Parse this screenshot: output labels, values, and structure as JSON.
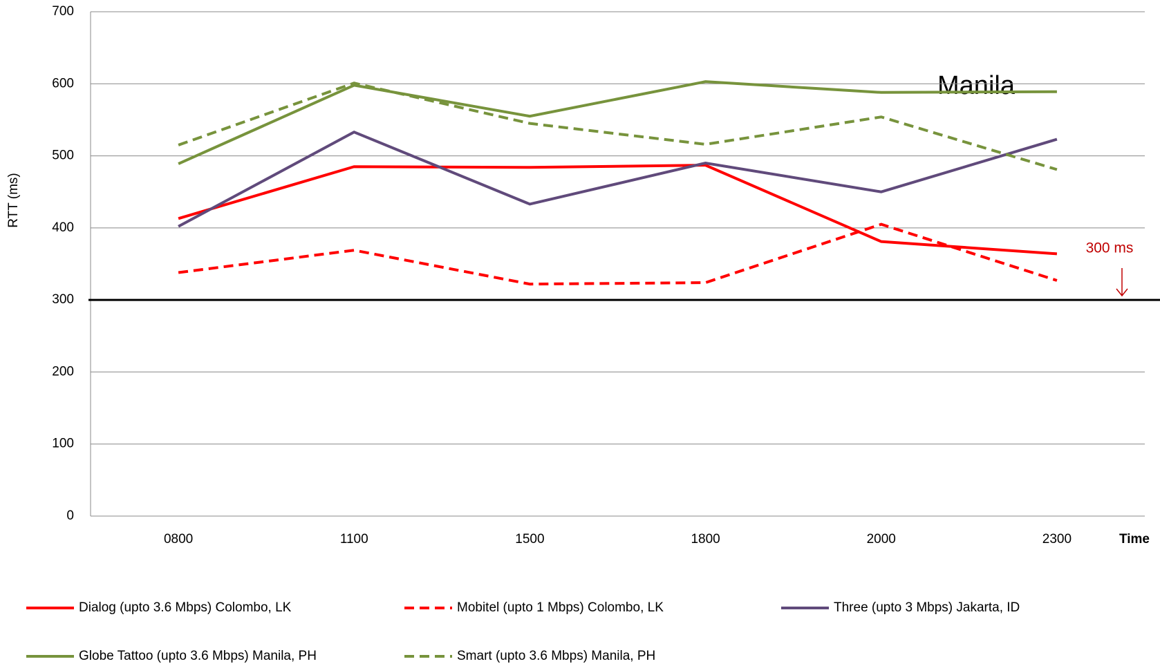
{
  "chart_data": {
    "type": "line",
    "categories": [
      "0800",
      "1100",
      "1500",
      "1800",
      "2000",
      "2300"
    ],
    "x_label": "Time",
    "y_label": "RTT (ms)",
    "ylim": [
      0,
      700
    ],
    "yticks": [
      0,
      100,
      200,
      300,
      400,
      500,
      600,
      700
    ],
    "grid": true,
    "reference_line": 300,
    "annotations": [
      "300 ms",
      "Manila"
    ],
    "legend": "bottom",
    "series": [
      {
        "name": "Dialog (upto 3.6 Mbps) Colombo, LK",
        "color": "#ff0000",
        "dashed": false,
        "values": [
          413,
          485,
          484,
          487,
          381,
          364
        ]
      },
      {
        "name": "Mobitel (upto 1 Mbps) Colombo, LK",
        "color": "#ff0000",
        "dashed": true,
        "values": [
          338,
          369,
          322,
          324,
          405,
          327
        ]
      },
      {
        "name": "Three (upto 3 Mbps) Jakarta, ID",
        "color": "#604a7b",
        "dashed": false,
        "values": [
          402,
          533,
          433,
          490,
          450,
          523
        ]
      },
      {
        "name": "Globe Tattoo (upto 3.6 Mbps) Manila, PH",
        "color": "#77933c",
        "dashed": false,
        "values": [
          489,
          598,
          555,
          603,
          588,
          589
        ]
      },
      {
        "name": "Smart (upto 3.6 Mbps) Manila, PH",
        "color": "#77933c",
        "dashed": true,
        "values": [
          515,
          601,
          545,
          516,
          554,
          481
        ]
      }
    ]
  }
}
